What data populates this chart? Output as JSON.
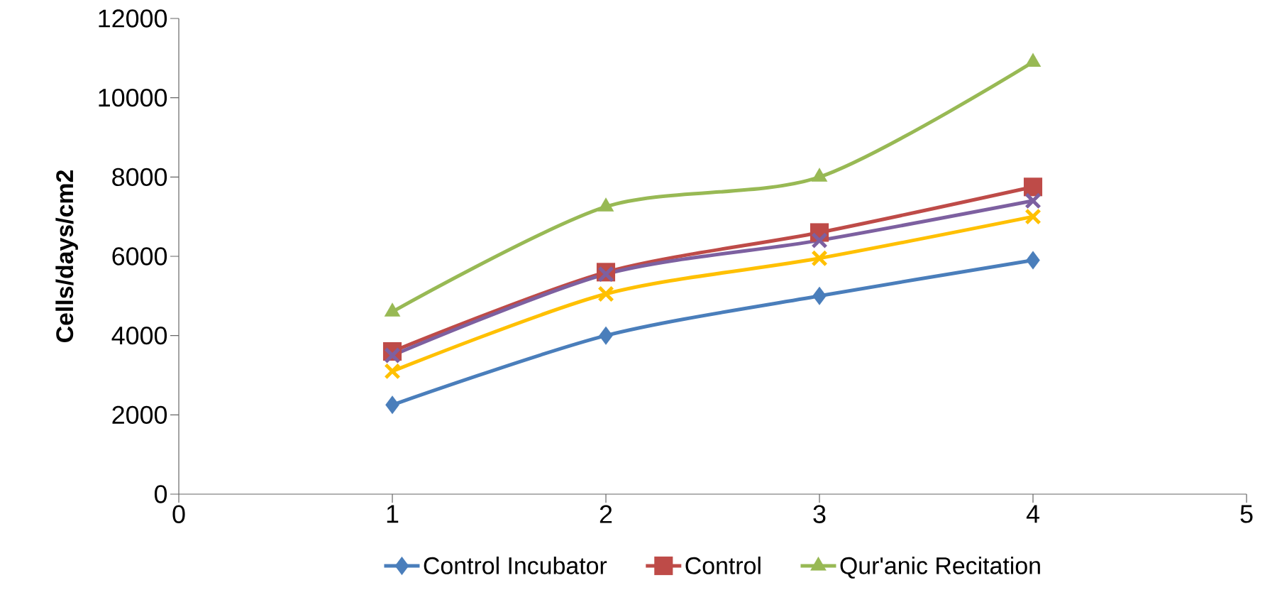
{
  "chart_data": {
    "type": "line",
    "ylabel": "Cells/days/cm2",
    "x": [
      1,
      2,
      3,
      4
    ],
    "xlim": [
      0,
      5
    ],
    "xticks": [
      0,
      1,
      2,
      3,
      4,
      5
    ],
    "ylim": [
      0,
      12000
    ],
    "yticks": [
      0,
      2000,
      4000,
      6000,
      8000,
      10000,
      12000
    ],
    "grid": false,
    "legend": "bottom",
    "series": [
      {
        "name": "Control Incubator",
        "color": "#4a7ebb",
        "marker": "diamond",
        "values": [
          2250,
          4000,
          5000,
          5900
        ]
      },
      {
        "name": "Control",
        "color": "#be4b48",
        "marker": "square",
        "values": [
          3600,
          5600,
          6600,
          7750
        ]
      },
      {
        "name": "Qur'anic Recitation",
        "color": "#98b954",
        "marker": "triangle",
        "values": [
          4600,
          7250,
          8000,
          10900
        ]
      },
      {
        "color": "#7d60a0",
        "marker": "cross",
        "values": [
          3500,
          5550,
          6400,
          7400
        ]
      },
      {
        "color": "#ffc000",
        "marker": "cross",
        "values": [
          3100,
          5050,
          5950,
          7000
        ]
      }
    ]
  }
}
